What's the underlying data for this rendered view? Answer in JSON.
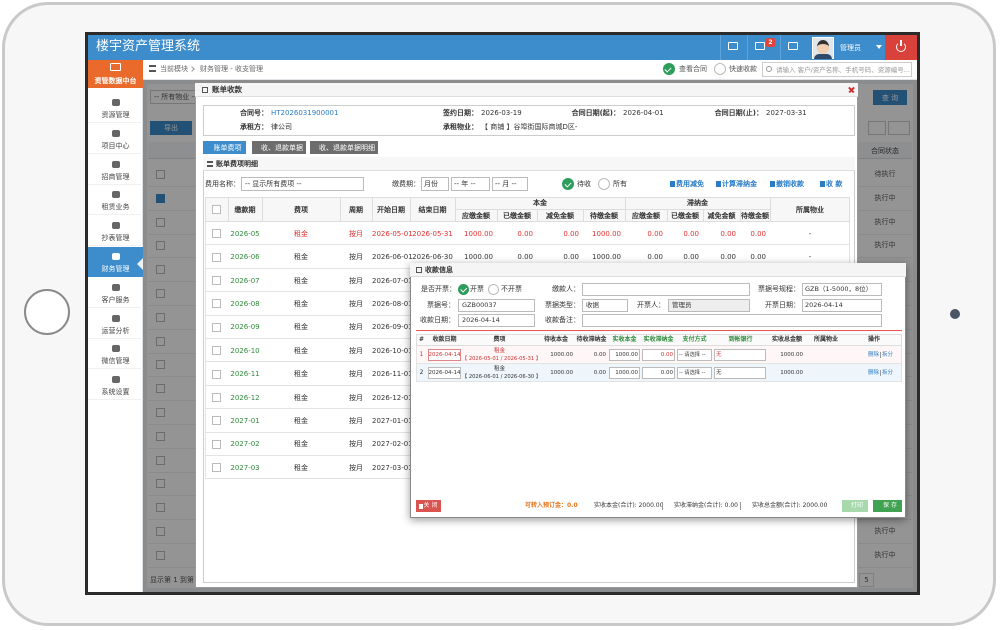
{
  "header": {
    "title": "楼宇资产管理系统",
    "badge": "2",
    "user": "管理员"
  },
  "sidebar": {
    "top": "资管数据中台",
    "items": [
      "资源管理",
      "项目中心",
      "招商管理",
      "租赁业务",
      "抄表管理",
      "财务管理",
      "客户服务",
      "运营分析",
      "微信管理",
      "系统设置"
    ],
    "active": 5
  },
  "breadcrumb": {
    "module": "当前模块",
    "path": "财务管理 - 收支管理",
    "view_contract": "查看合同",
    "quick_pay": "快速收款",
    "search_placeholder": "请输入 客户/资产名称、手机号码、资源编号..."
  },
  "background": {
    "property_filter": "-- 所有物业 --",
    "query": "查 询",
    "export": "导出",
    "status_header": "合同状态",
    "statuses": [
      "待执行",
      "执行中",
      "执行中",
      "执行中",
      "执行中",
      "执行中"
    ],
    "footer": "显示第 1 到第 20",
    "page": "5"
  },
  "bill_modal": {
    "title": "账单收款",
    "contract": [
      {
        "label": "合同号：",
        "value": "HT2026031900001"
      },
      {
        "label": "签约日期：",
        "value": "2026-03-19"
      },
      {
        "label": "合同日期(起)：",
        "value": "2026-04-01"
      },
      {
        "label": "合同日期(止)：",
        "value": "2027-03-31"
      },
      {
        "label": "承租方：",
        "value": "律公司"
      },
      {
        "label": "承租物业：",
        "value": "【 商铺 】谷埠街国际商城D区-"
      }
    ],
    "tabs": [
      "账单费项",
      "收、退款单据",
      "收、退款单据明细"
    ],
    "panel_title": "账单费项明细",
    "filter": {
      "fee_label": "费用名称：",
      "fee_select": "-- 显示所有费项 --",
      "period_label": "缴费期：",
      "period_selects": [
        "月份",
        "-- 年 --",
        "-- 月 --"
      ],
      "radios": [
        "待收",
        "所有"
      ]
    },
    "actions": [
      "费用减免",
      "计算滞纳金",
      "撤销收款",
      "收 款"
    ],
    "table": {
      "columns": [
        "缴款期",
        "费项",
        "周期",
        "开始日期",
        "结束日期"
      ],
      "group_principal": "本金",
      "group_late": "滞纳金",
      "sub_columns": [
        "应缴金额",
        "已缴金额",
        "减免金额",
        "待缴金额"
      ],
      "property": "所属物业",
      "rows": [
        [
          "2026-05",
          "租金",
          "按月",
          "2026-05-01",
          "2026-05-31",
          "1000.00",
          "0.00",
          "0.00",
          "1000.00",
          "0.00",
          "0.00",
          "0.00",
          "0.00",
          "-"
        ],
        [
          "2026-06",
          "租金",
          "按月",
          "2026-06-01",
          "2026-06-30",
          "1000.00",
          "0.00",
          "0.00",
          "1000.00",
          "0.00",
          "0.00",
          "0.00",
          "0.00",
          "-"
        ],
        [
          "2026-07",
          "租金",
          "按月",
          "2026-07-01"
        ],
        [
          "2026-08",
          "租金",
          "按月",
          "2026-08-01"
        ],
        [
          "2026-09",
          "租金",
          "按月",
          "2026-09-01"
        ],
        [
          "2026-10",
          "租金",
          "按月",
          "2026-10-01"
        ],
        [
          "2026-11",
          "租金",
          "按月",
          "2026-11-01"
        ],
        [
          "2026-12",
          "租金",
          "按月",
          "2026-12-01"
        ],
        [
          "2027-01",
          "租金",
          "按月",
          "2027-01-01"
        ],
        [
          "2027-02",
          "租金",
          "按月",
          "2027-02-01"
        ],
        [
          "2027-03",
          "租金",
          "按月",
          "2027-03-01"
        ]
      ]
    }
  },
  "receipt_modal": {
    "title": "收款信息",
    "invoice_label": "是否开票：",
    "invoice_options": [
      "开票",
      "不开票"
    ],
    "payer_label": "缴款人：",
    "rule_label": "票据号规程：",
    "rule": "GZB（1-5000，8位）",
    "no_label": "票据号：",
    "no": "GZB00037",
    "type_label": "票据类型：",
    "type": "收据",
    "issuer_label": "开票人：",
    "issuer": "管理员",
    "date_label": "开票日期：",
    "date": "2026-04-14",
    "receive_date_label": "收款日期：",
    "receive_date": "2026-04-14",
    "remark_label": "收款备注：",
    "columns": [
      "#",
      "收款日期",
      "费项",
      "待收本金",
      "待收滞纳金",
      "实收本金",
      "实收滞纳金",
      "支付方式",
      "到帐银行",
      "实收总金额",
      "所属物业",
      "操作"
    ],
    "rows": [
      {
        "no": "1",
        "date": "2026-04-14",
        "fee": "租金",
        "period": "【 2026-05-01 / 2026-05-31 】",
        "due_principal": "1000.00",
        "due_late": "0.00",
        "paid_principal": "1000.00",
        "paid_late": "0.00",
        "method": "-- 请选择 --",
        "bank": "无",
        "total": "1000.00",
        "delete": "删除",
        "split": "拆分"
      },
      {
        "no": "2",
        "date": "2026-04-14",
        "fee": "租金",
        "period": "【 2026-06-01 / 2026-06-30 】",
        "due_principal": "1000.00",
        "due_late": "0.00",
        "paid_principal": "1000.00",
        "paid_late": "0.00",
        "method": "-- 请选择 --",
        "bank": "无",
        "total": "1000.00",
        "delete": "删除",
        "split": "拆分"
      }
    ],
    "footer": {
      "close": "关 闭",
      "deposit": "可转入预订金：0.0",
      "sum_principal": "实收本金(合计): 2000.00",
      "sum_late": "实收滞纳金(合计): 0.00",
      "sum_total": "实收总金额(合计): 2000.00",
      "print": "打印",
      "save": "保 存"
    }
  }
}
